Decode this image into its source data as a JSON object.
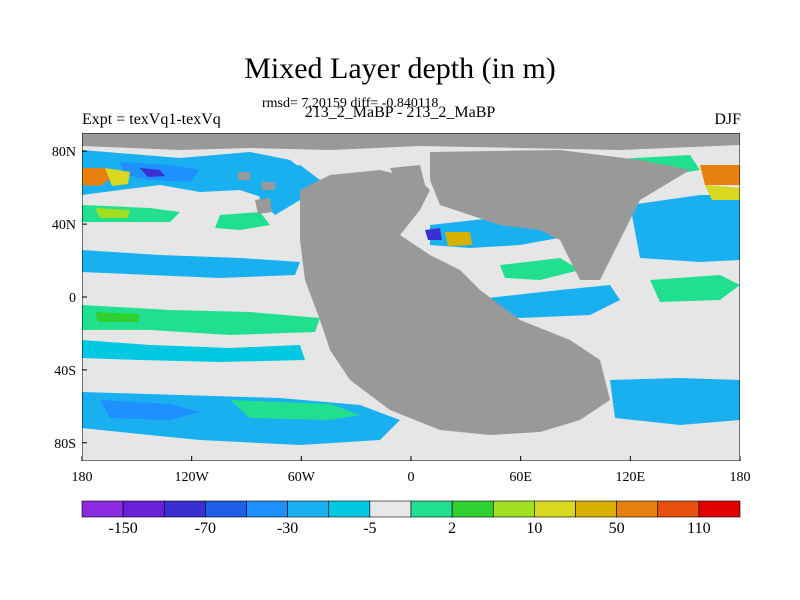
{
  "title": "Mixed Layer depth (in m)",
  "stats_line": "rmsd= 7.20159 diff= -0.840118",
  "left_label": "Expt = texVq1-texVq",
  "center_label": "213_2_MaBP - 213_2_MaBP",
  "right_label": "DJF",
  "map": {
    "lon_range": [
      -180,
      180
    ],
    "lat_range": [
      -90,
      90
    ],
    "lon_ticks": [
      {
        "value": -180,
        "label": "180"
      },
      {
        "value": -120,
        "label": "120W"
      },
      {
        "value": -60,
        "label": "60W"
      },
      {
        "value": 0,
        "label": "0"
      },
      {
        "value": 60,
        "label": "60E"
      },
      {
        "value": 120,
        "label": "120E"
      },
      {
        "value": 180,
        "label": "180"
      }
    ],
    "lat_ticks": [
      {
        "value": 80,
        "label": "80N"
      },
      {
        "value": 40,
        "label": "40N"
      },
      {
        "value": 0,
        "label": "0"
      },
      {
        "value": -40,
        "label": "40S"
      },
      {
        "value": -80,
        "label": "80S"
      }
    ],
    "ocean_color": "#e6e6e6",
    "land_color": "#999999"
  },
  "colorbar": {
    "colors": [
      "#8a2be2",
      "#6a1fd8",
      "#3a2fd0",
      "#1f5fe8",
      "#1e90ff",
      "#19b0f0",
      "#00c8e0",
      "#e8e8e8",
      "#20e090",
      "#30d030",
      "#a0e020",
      "#d8d820",
      "#d8b000",
      "#e88010",
      "#e85010",
      "#e00000"
    ],
    "labels": [
      "-150",
      "-70",
      "-30",
      "-5",
      "2",
      "10",
      "50",
      "110"
    ]
  }
}
